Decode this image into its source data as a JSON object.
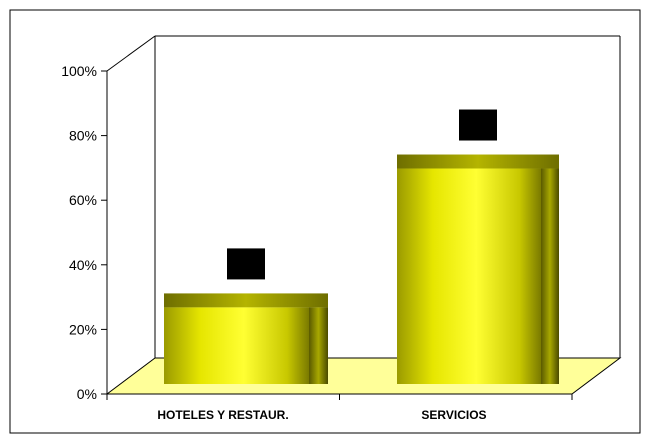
{
  "chart_data": {
    "type": "bar",
    "title": "",
    "xlabel": "",
    "ylabel": "",
    "ylim": [
      0,
      100
    ],
    "y_ticks": [
      0,
      20,
      40,
      60,
      80,
      100
    ],
    "y_tick_labels": [
      "0%",
      "20%",
      "40%",
      "60%",
      "80%",
      "100%"
    ],
    "categories": [
      "HOTELES Y RESTAUR.",
      "SERVICIOS"
    ],
    "values": [
      33,
      76
    ],
    "grid": false,
    "legend": "none",
    "three_d": true,
    "colors": {
      "bar_light": "#ffff33",
      "bar_mid": "#d8d800",
      "bar_dark": "#6b6b00",
      "bar_top": "#9a9a00",
      "floor": "#ffff99",
      "frame": "#000000",
      "data_label_box": "#000000"
    }
  }
}
